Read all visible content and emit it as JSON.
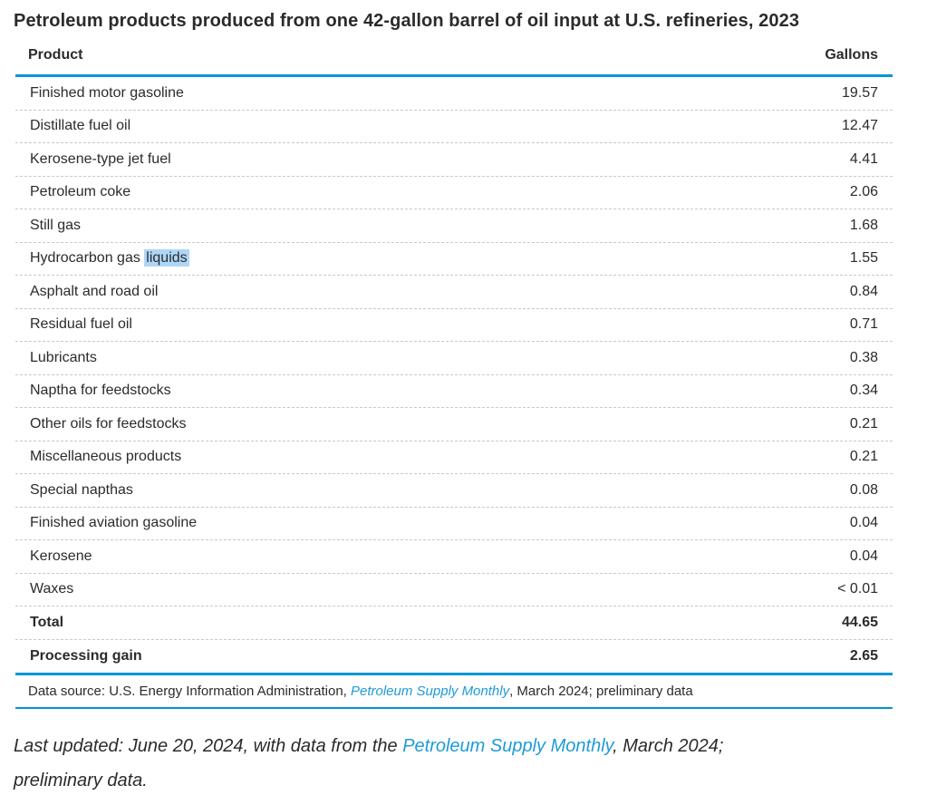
{
  "chart_data": {
    "type": "table",
    "title": "Petroleum products produced from one 42-gallon barrel of oil input at U.S. refineries, 2023",
    "columns": [
      "Product",
      "Gallons"
    ],
    "rows": [
      {
        "product": "Finished motor gasoline",
        "gallons": "19.57"
      },
      {
        "product": "Distillate fuel oil",
        "gallons": "12.47"
      },
      {
        "product": "Kerosene-type jet fuel",
        "gallons": "4.41"
      },
      {
        "product": "Petroleum coke",
        "gallons": "2.06"
      },
      {
        "product": "Still gas",
        "gallons": "1.68"
      },
      {
        "product": "Hydrocarbon gas liquids",
        "gallons": "1.55"
      },
      {
        "product": "Asphalt and road oil",
        "gallons": "0.84"
      },
      {
        "product": "Residual fuel oil",
        "gallons": "0.71"
      },
      {
        "product": "Lubricants",
        "gallons": "0.38"
      },
      {
        "product": "Naptha for feedstocks",
        "gallons": "0.34"
      },
      {
        "product": "Other oils for feedstocks",
        "gallons": "0.21"
      },
      {
        "product": "Miscellaneous products",
        "gallons": "0.21"
      },
      {
        "product": "Special napthas",
        "gallons": "0.08"
      },
      {
        "product": "Finished aviation gasoline",
        "gallons": "0.04"
      },
      {
        "product": "Kerosene",
        "gallons": "0.04"
      },
      {
        "product": "Waxes",
        "gallons": "< 0.01"
      },
      {
        "product": "Total",
        "gallons": "44.65",
        "bold": true
      },
      {
        "product": "Processing gain",
        "gallons": "2.65",
        "bold": true
      }
    ],
    "highlight": {
      "product": "Hydrocarbon gas liquids",
      "term": "liquids"
    }
  },
  "source": {
    "prefix": "Data source: U.S. Energy Information Administration, ",
    "link": "Petroleum Supply Monthly",
    "suffix": ", March 2024; preliminary data"
  },
  "last_updated": {
    "prefix": "Last updated: June 20, 2024, with data from the ",
    "link": "Petroleum Supply Monthly",
    "suffix": ", March 2024; preliminary data."
  },
  "colors": {
    "accent": "#0096d7",
    "link": "#1f9bd7",
    "highlight": "#aed6f7",
    "text": "#2b2b2b",
    "separator": "#c9c9c9"
  }
}
